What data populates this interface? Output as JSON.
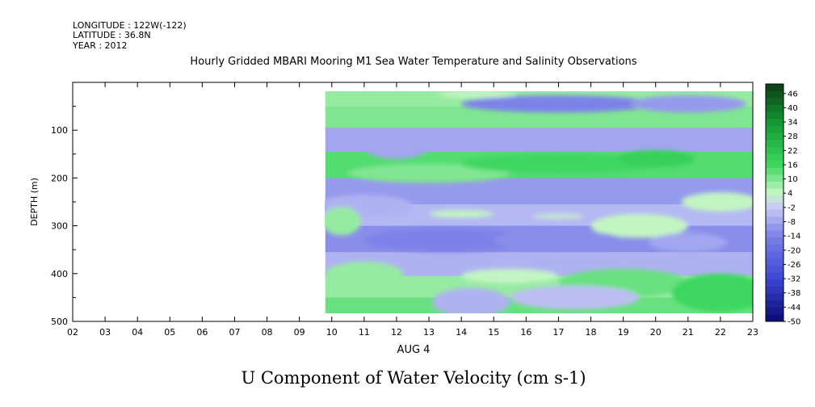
{
  "header": {
    "longitude": "LONGITUDE : 122W(-122)",
    "latitude": "LATITUDE : 36.8N",
    "year": "YEAR : 2012",
    "title": "Hourly Gridded MBARI Mooring M1 Sea Water Temperature and Salinity Observations"
  },
  "chart_data": {
    "type": "heatmap",
    "title": "U Component of Water Velocity (cm s-1)",
    "xlabel": "AUG  4",
    "ylabel": "DEPTH  (m)",
    "x_ticks": [
      "02",
      "03",
      "04",
      "05",
      "06",
      "07",
      "08",
      "09",
      "10",
      "11",
      "12",
      "13",
      "14",
      "15",
      "16",
      "17",
      "18",
      "19",
      "20",
      "21",
      "22",
      "23"
    ],
    "xlim": [
      2,
      23
    ],
    "y_ticks": [
      100,
      200,
      300,
      400,
      500
    ],
    "ylim": [
      500,
      0
    ],
    "y_reversed": true,
    "data_start_x": 9.8,
    "data_depth_range": [
      15,
      490
    ],
    "colorbar": {
      "levels": [
        46,
        40,
        34,
        28,
        22,
        16,
        10,
        4,
        -2,
        -8,
        -14,
        -20,
        -26,
        -32,
        -38,
        -44,
        -50
      ],
      "range": [
        -50,
        50
      ],
      "colors": {
        "strong_positive": "#0b3d14",
        "positive": "#1fd14a",
        "weak_positive": "#b8f2b6",
        "weak_negative": "#c7c8f4",
        "negative": "#7f83e8",
        "strong_negative": "#0a0a73"
      }
    },
    "bands": [
      {
        "depth": [
          15,
          50
        ],
        "value": 8
      },
      {
        "depth": [
          50,
          95
        ],
        "value": 10
      },
      {
        "depth": [
          95,
          145
        ],
        "value": -8
      },
      {
        "depth": [
          145,
          200
        ],
        "value": 14
      },
      {
        "depth": [
          200,
          255
        ],
        "value": -10
      },
      {
        "depth": [
          255,
          300
        ],
        "value": -5
      },
      {
        "depth": [
          300,
          355
        ],
        "value": -12
      },
      {
        "depth": [
          355,
          405
        ],
        "value": -6
      },
      {
        "depth": [
          405,
          450
        ],
        "value": 8
      },
      {
        "depth": [
          450,
          490
        ],
        "value": 12
      }
    ]
  }
}
